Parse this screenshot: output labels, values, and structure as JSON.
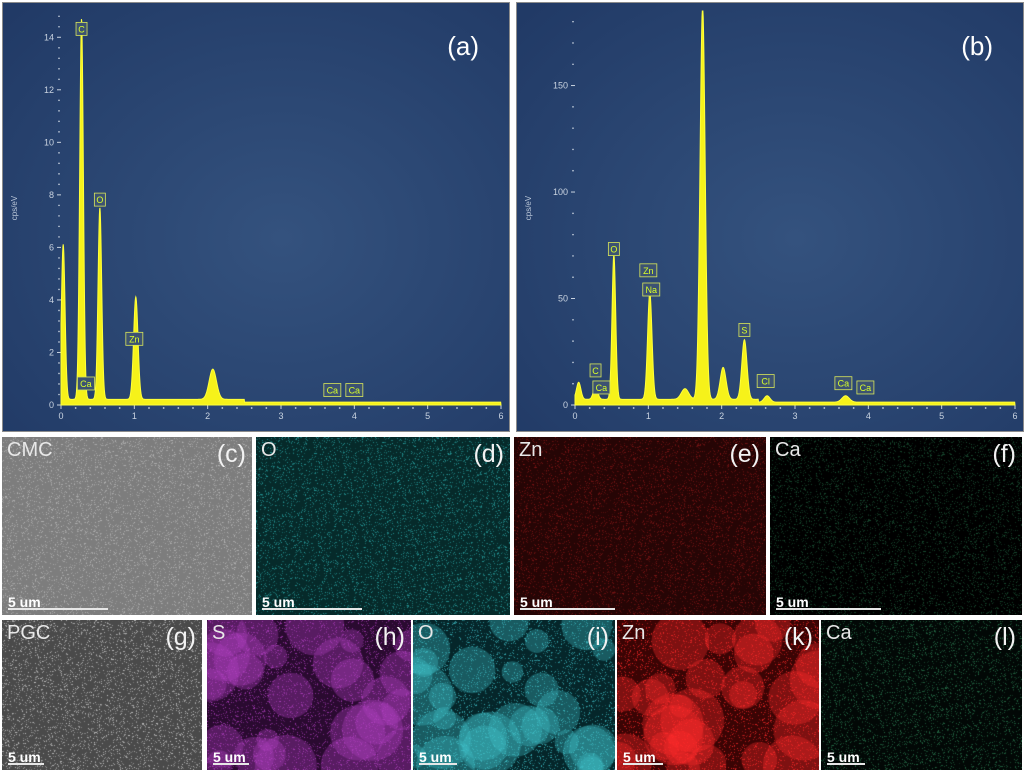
{
  "chart_data": [
    {
      "type": "line",
      "panel_label": "(a)",
      "ylabel": "cps/eV",
      "xlim": [
        0,
        6
      ],
      "ylim": [
        0,
        15
      ],
      "x_ticks": [
        "0",
        "1",
        "2",
        "3",
        "4",
        "5",
        "6"
      ],
      "y_ticks": [
        "0",
        "2",
        "4",
        "6",
        "8",
        "10",
        "12",
        "14"
      ],
      "peaks": [
        {
          "x": 0.03,
          "y": 5.9,
          "w": 0.025
        },
        {
          "x": 0.28,
          "y": 14.5,
          "w": 0.025
        },
        {
          "x": 0.53,
          "y": 7.3,
          "w": 0.025
        },
        {
          "x": 1.02,
          "y": 3.9,
          "w": 0.03
        },
        {
          "x": 2.07,
          "y": 1.15,
          "w": 0.05
        }
      ],
      "element_labels": [
        {
          "text": "C",
          "x": 0.28,
          "y": 14.3
        },
        {
          "text": "O",
          "x": 0.53,
          "y": 7.8
        },
        {
          "text": "Zn",
          "x": 1.0,
          "y": 2.5
        },
        {
          "text": "Ca",
          "x": 0.34,
          "y": 0.8
        },
        {
          "text": "Ca",
          "x": 3.7,
          "y": 0.55
        },
        {
          "text": "Ca",
          "x": 4.0,
          "y": 0.55
        }
      ]
    },
    {
      "type": "line",
      "panel_label": "(b)",
      "ylabel": "cps/eV",
      "xlim": [
        0,
        6
      ],
      "ylim": [
        0,
        185
      ],
      "x_ticks": [
        "0",
        "1",
        "2",
        "3",
        "4",
        "5",
        "6"
      ],
      "y_ticks": [
        "0",
        "50",
        "100",
        "150"
      ],
      "peaks": [
        {
          "x": 0.05,
          "y": 8,
          "w": 0.03
        },
        {
          "x": 0.28,
          "y": 6,
          "w": 0.03
        },
        {
          "x": 0.53,
          "y": 68,
          "w": 0.025
        },
        {
          "x": 1.02,
          "y": 50,
          "w": 0.03
        },
        {
          "x": 1.5,
          "y": 5,
          "w": 0.05
        },
        {
          "x": 1.74,
          "y": 185,
          "w": 0.035
        },
        {
          "x": 2.02,
          "y": 15,
          "w": 0.04
        },
        {
          "x": 2.31,
          "y": 28,
          "w": 0.035
        },
        {
          "x": 2.62,
          "y": 3,
          "w": 0.04
        },
        {
          "x": 3.69,
          "y": 3,
          "w": 0.05
        }
      ],
      "element_labels": [
        {
          "text": "O",
          "x": 0.53,
          "y": 73
        },
        {
          "text": "Zn",
          "x": 1.0,
          "y": 63
        },
        {
          "text": "Na",
          "x": 1.04,
          "y": 54
        },
        {
          "text": "S",
          "x": 2.31,
          "y": 35
        },
        {
          "text": "C",
          "x": 0.28,
          "y": 16
        },
        {
          "text": "Ca",
          "x": 0.36,
          "y": 8
        },
        {
          "text": "Cl",
          "x": 2.6,
          "y": 11
        },
        {
          "text": "Ca",
          "x": 3.66,
          "y": 10
        },
        {
          "text": "Ca",
          "x": 3.96,
          "y": 8
        }
      ]
    }
  ],
  "maps_row1": [
    {
      "element": "CMC",
      "label": "(c)",
      "scale": "5 um",
      "bg": "#7d7d7d",
      "dot": "#bdbdbd"
    },
    {
      "element": "O",
      "label": "(d)",
      "scale": "5 um",
      "bg": "#062a2a",
      "dot": "#2aa7a7"
    },
    {
      "element": "Zn",
      "label": "(e)",
      "scale": "5 um",
      "bg": "#260505",
      "dot": "#8a1818"
    },
    {
      "element": "Ca",
      "label": "(f)",
      "scale": "5 um",
      "bg": "#000000",
      "dot": "#1d5a3a"
    }
  ],
  "maps_row2": [
    {
      "element": "PGC",
      "label": "(g)",
      "scale": "5 um",
      "bg": "#4a4a4a",
      "dot": "#d0d0d0"
    },
    {
      "element": "S",
      "label": "(h)",
      "scale": "5 um",
      "bg": "#2a0a30",
      "dot": "#b040c0"
    },
    {
      "element": "O",
      "label": "(i)",
      "scale": "5 um",
      "bg": "#05262a",
      "dot": "#40c0c8"
    },
    {
      "element": "Zn",
      "label": "(k)",
      "scale": "5 um",
      "bg": "#3a0404",
      "dot": "#ff2a2a"
    },
    {
      "element": "Ca",
      "label": "(l)",
      "scale": "5 um",
      "bg": "#020806",
      "dot": "#2a7a50"
    }
  ]
}
